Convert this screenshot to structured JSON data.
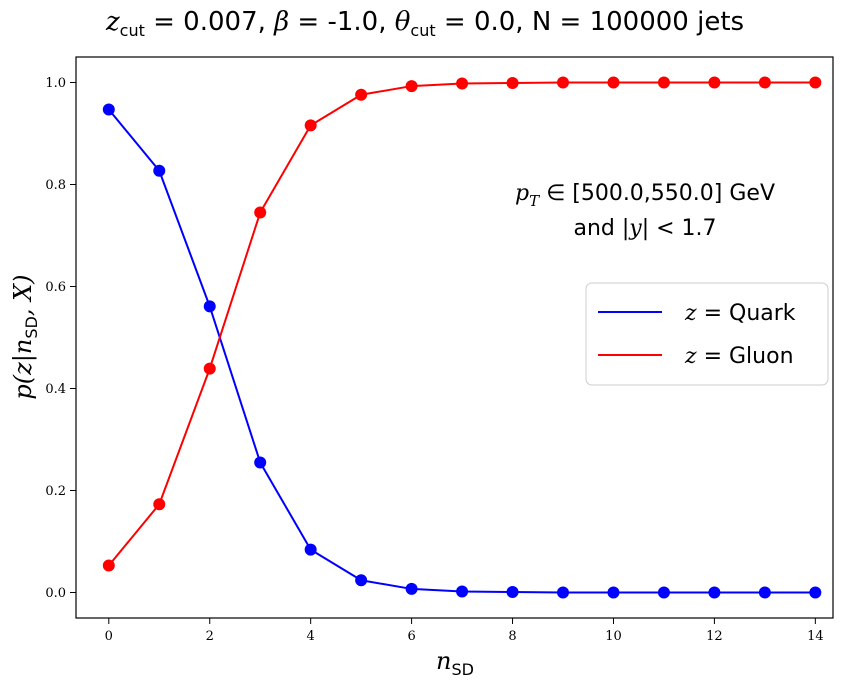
{
  "chart_data": {
    "type": "line",
    "title": "z_cut = 0.007, β = -1.0, θ_cut = 0.0, N = 100000 jets",
    "xlabel": "n_SD",
    "ylabel": "p(z|n_SD, X)",
    "xlim": [
      -0.65,
      14.35
    ],
    "ylim": [
      -0.05,
      1.05
    ],
    "xticks": [
      0,
      2,
      4,
      6,
      8,
      10,
      12,
      14
    ],
    "yticks": [
      0.0,
      0.2,
      0.4,
      0.6,
      0.8,
      1.0
    ],
    "xtick_labels": [
      "0",
      "2",
      "4",
      "6",
      "8",
      "10",
      "12",
      "14"
    ],
    "ytick_labels": [
      "0.0",
      "0.2",
      "0.4",
      "0.6",
      "0.8",
      "1.0"
    ],
    "grid": false,
    "legend_position": "center-right",
    "annotation": [
      "p_T ∈ [500.0,550.0] GeV",
      "and |y| < 1.7"
    ],
    "x": [
      0,
      1,
      2,
      3,
      4,
      5,
      6,
      7,
      8,
      9,
      10,
      11,
      12,
      13,
      14
    ],
    "series": [
      {
        "name": "z = Quark",
        "color": "#0000ff",
        "values": [
          0.947,
          0.827,
          0.561,
          0.255,
          0.084,
          0.024,
          0.007,
          0.002,
          0.001,
          0.0,
          0.0,
          0.0,
          0.0,
          0.0,
          0.0
        ]
      },
      {
        "name": "z = Gluon",
        "color": "#ff0000",
        "values": [
          0.053,
          0.173,
          0.439,
          0.745,
          0.916,
          0.976,
          0.993,
          0.998,
          0.999,
          1.0,
          1.0,
          1.0,
          1.0,
          1.0,
          1.0
        ]
      }
    ]
  }
}
